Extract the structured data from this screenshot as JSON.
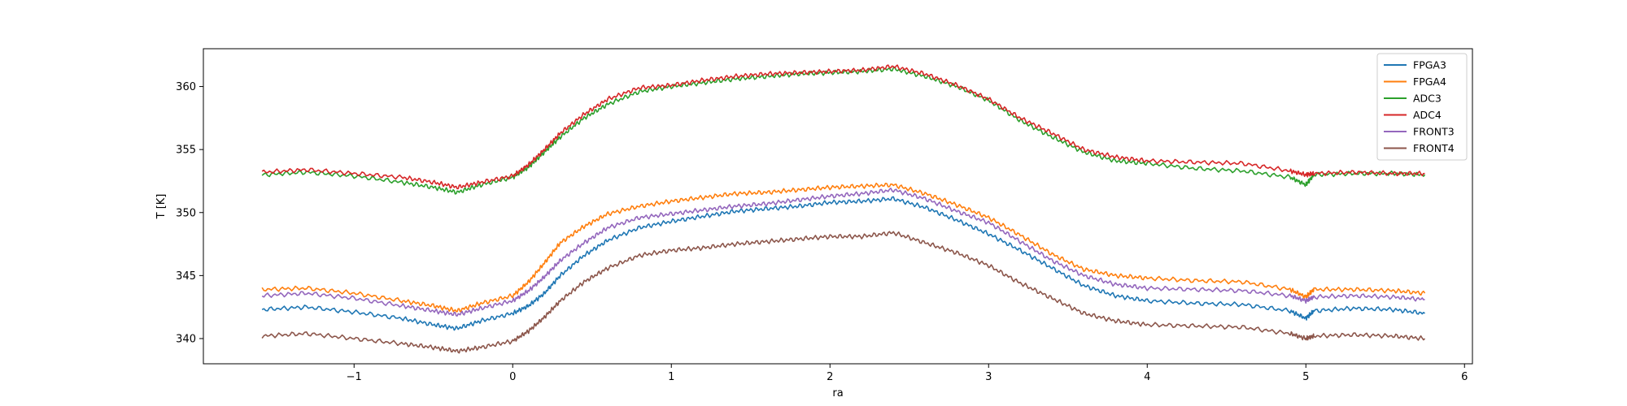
{
  "chart_data": {
    "type": "line",
    "title": "",
    "xlabel": "ra",
    "ylabel": "T [K]",
    "xlim": [
      -1.95,
      6.05
    ],
    "ylim": [
      338.0,
      363.0
    ],
    "xticks": [
      -1,
      0,
      1,
      2,
      3,
      4,
      5,
      6
    ],
    "xtick_labels": [
      "−1",
      "0",
      "1",
      "2",
      "3",
      "4",
      "5",
      "6"
    ],
    "yticks": [
      340,
      345,
      350,
      355,
      360
    ],
    "ytick_labels": [
      "340",
      "345",
      "350",
      "355",
      "360"
    ],
    "grid": false,
    "legend_position": "top-right",
    "x": [
      -1.58,
      -1.3,
      -1.0,
      -0.7,
      -0.5,
      -0.35,
      -0.2,
      0.0,
      0.1,
      0.2,
      0.3,
      0.45,
      0.6,
      0.8,
      1.0,
      1.2,
      1.4,
      1.6,
      1.8,
      2.0,
      2.2,
      2.4,
      2.6,
      2.8,
      3.0,
      3.2,
      3.4,
      3.6,
      3.8,
      4.0,
      4.3,
      4.6,
      4.9,
      5.0,
      5.05,
      5.3,
      5.55,
      5.75
    ],
    "series": [
      {
        "name": "FPGA3",
        "color": "#1f77b4",
        "values": [
          342.3,
          342.5,
          342.1,
          341.6,
          341.1,
          340.8,
          341.4,
          342.0,
          342.6,
          343.6,
          345.0,
          346.6,
          347.8,
          348.8,
          349.3,
          349.7,
          350.1,
          350.3,
          350.5,
          350.8,
          350.9,
          351.1,
          350.4,
          349.4,
          348.3,
          347.0,
          345.6,
          344.2,
          343.4,
          343.0,
          342.8,
          342.7,
          342.2,
          341.6,
          342.2,
          342.4,
          342.3,
          342.0
        ]
      },
      {
        "name": "FPGA4",
        "color": "#ff7f0e",
        "values": [
          343.9,
          344.0,
          343.6,
          343.0,
          342.6,
          342.2,
          342.8,
          343.4,
          344.5,
          346.0,
          347.6,
          348.9,
          349.9,
          350.5,
          350.9,
          351.2,
          351.5,
          351.6,
          351.8,
          352.0,
          352.1,
          352.2,
          351.5,
          350.6,
          349.6,
          348.2,
          346.7,
          345.5,
          345.0,
          344.8,
          344.6,
          344.5,
          343.9,
          343.3,
          343.9,
          343.9,
          343.8,
          343.6
        ]
      },
      {
        "name": "ADC3",
        "color": "#2ca02c",
        "values": [
          353.0,
          353.2,
          352.9,
          352.4,
          352.0,
          351.6,
          352.2,
          352.8,
          353.6,
          354.8,
          356.0,
          357.5,
          358.6,
          359.6,
          360.0,
          360.3,
          360.6,
          360.8,
          361.0,
          361.1,
          361.2,
          361.4,
          360.8,
          360.0,
          358.9,
          357.3,
          356.0,
          354.8,
          354.1,
          353.9,
          353.5,
          353.3,
          352.8,
          352.2,
          353.0,
          353.1,
          353.1,
          353.0
        ]
      },
      {
        "name": "ADC4",
        "color": "#d62728",
        "values": [
          353.2,
          353.4,
          353.1,
          352.8,
          352.4,
          352.0,
          352.4,
          352.9,
          353.8,
          355.0,
          356.3,
          357.8,
          359.0,
          359.9,
          360.1,
          360.5,
          360.8,
          361.0,
          361.1,
          361.2,
          361.3,
          361.6,
          361.0,
          360.1,
          359.0,
          357.5,
          356.3,
          355.0,
          354.4,
          354.1,
          354.0,
          353.9,
          353.3,
          353.0,
          353.1,
          353.2,
          353.1,
          353.1
        ]
      },
      {
        "name": "FRONT3",
        "color": "#9467bd",
        "values": [
          343.4,
          343.6,
          343.2,
          342.6,
          342.2,
          341.9,
          342.4,
          343.0,
          343.8,
          344.9,
          346.2,
          347.6,
          348.8,
          349.6,
          349.9,
          350.2,
          350.5,
          350.7,
          351.0,
          351.3,
          351.5,
          351.8,
          351.1,
          350.1,
          349.2,
          347.7,
          346.2,
          345.0,
          344.3,
          344.0,
          343.9,
          343.8,
          343.4,
          343.0,
          343.3,
          343.4,
          343.3,
          343.1
        ]
      },
      {
        "name": "FRONT4",
        "color": "#8c564b",
        "values": [
          340.2,
          340.4,
          340.0,
          339.6,
          339.3,
          339.0,
          339.3,
          339.8,
          340.6,
          341.7,
          343.0,
          344.5,
          345.6,
          346.6,
          347.0,
          347.2,
          347.5,
          347.7,
          347.9,
          348.1,
          348.1,
          348.4,
          347.6,
          346.8,
          345.8,
          344.4,
          343.2,
          342.0,
          341.4,
          341.1,
          341.0,
          340.9,
          340.4,
          340.0,
          340.2,
          340.3,
          340.2,
          340.0
        ]
      }
    ]
  }
}
